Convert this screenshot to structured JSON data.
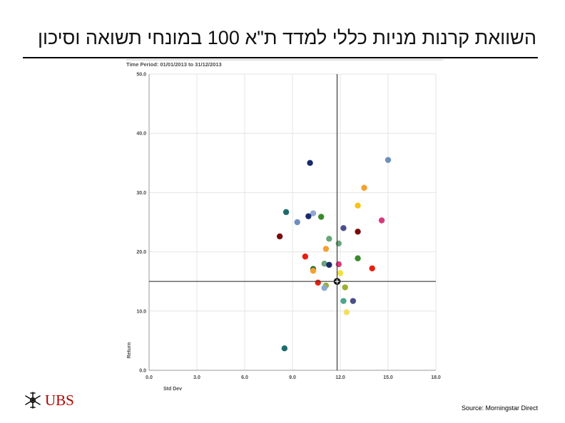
{
  "slide": {
    "title": "השוואת קרנות מניות כללי למדד ת\"א 100 במונחי תשואה וסיכון",
    "source": "Source: Morningstar Direct",
    "brand_name": "UBS"
  },
  "chart_data": {
    "type": "scatter",
    "time_period_label": "Time Period: 01/01/2013 to 31/12/2013",
    "xlabel": "Std Dev",
    "ylabel": "Return",
    "xlim": [
      0,
      18
    ],
    "ylim": [
      0,
      50
    ],
    "x_ticks": [
      "0.0",
      "3.0",
      "6.0",
      "9.0",
      "12.0",
      "15.0",
      "18.0"
    ],
    "y_ticks": [
      "0.0",
      "10.0",
      "20.0",
      "30.0",
      "40.0",
      "50.0"
    ],
    "grid": true,
    "reference_point": {
      "x": 11.8,
      "y": 15.0
    },
    "points": [
      {
        "x": 10.1,
        "y": 35.0,
        "color": "#1a2a6c"
      },
      {
        "x": 15.0,
        "y": 35.5,
        "color": "#6f8fc0"
      },
      {
        "x": 13.5,
        "y": 30.8,
        "color": "#f5a030"
      },
      {
        "x": 13.1,
        "y": 27.8,
        "color": "#f5c518"
      },
      {
        "x": 8.6,
        "y": 26.7,
        "color": "#1f6b6b"
      },
      {
        "x": 10.3,
        "y": 26.5,
        "color": "#8fa8d0"
      },
      {
        "x": 10.0,
        "y": 26.0,
        "color": "#1a2a6c"
      },
      {
        "x": 10.8,
        "y": 25.9,
        "color": "#3a8a2a"
      },
      {
        "x": 9.3,
        "y": 25.0,
        "color": "#6f8fc0"
      },
      {
        "x": 14.6,
        "y": 25.3,
        "color": "#d63a7a"
      },
      {
        "x": 12.2,
        "y": 24.0,
        "color": "#4a4f8c"
      },
      {
        "x": 13.1,
        "y": 23.4,
        "color": "#7a0a0a"
      },
      {
        "x": 8.2,
        "y": 22.6,
        "color": "#7a0a0a"
      },
      {
        "x": 11.3,
        "y": 22.2,
        "color": "#6aa57a"
      },
      {
        "x": 11.9,
        "y": 21.4,
        "color": "#6aa57a"
      },
      {
        "x": 11.1,
        "y": 20.5,
        "color": "#f5a030"
      },
      {
        "x": 9.8,
        "y": 19.2,
        "color": "#e82010"
      },
      {
        "x": 13.1,
        "y": 18.9,
        "color": "#3a8a2a"
      },
      {
        "x": 11.0,
        "y": 18.0,
        "color": "#6aa57a"
      },
      {
        "x": 11.3,
        "y": 17.8,
        "color": "#1a2a6c"
      },
      {
        "x": 11.9,
        "y": 17.9,
        "color": "#d63a7a"
      },
      {
        "x": 10.3,
        "y": 17.1,
        "color": "#2a6a2a"
      },
      {
        "x": 10.3,
        "y": 16.8,
        "color": "#f5a030"
      },
      {
        "x": 14.0,
        "y": 17.2,
        "color": "#e82010"
      },
      {
        "x": 12.0,
        "y": 16.4,
        "color": "#f0e040"
      },
      {
        "x": 10.6,
        "y": 14.8,
        "color": "#e82010"
      },
      {
        "x": 11.1,
        "y": 14.3,
        "color": "#9ab030"
      },
      {
        "x": 11.0,
        "y": 13.9,
        "color": "#8fa8d0"
      },
      {
        "x": 12.3,
        "y": 14.0,
        "color": "#9ab030"
      },
      {
        "x": 12.2,
        "y": 11.7,
        "color": "#4aa58a"
      },
      {
        "x": 12.8,
        "y": 11.7,
        "color": "#4a4f8c"
      },
      {
        "x": 12.4,
        "y": 9.8,
        "color": "#f0e060"
      },
      {
        "x": 8.5,
        "y": 3.7,
        "color": "#1f6b6b"
      }
    ]
  }
}
